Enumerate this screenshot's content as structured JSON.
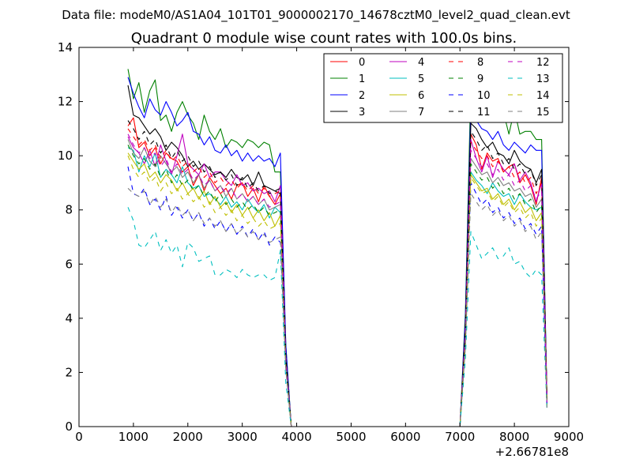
{
  "figure": {
    "suptitle": "Data file: modeM0/AS1A04_101T01_9000002170_14678cztM0_level2_quad_clean.evt"
  },
  "chart_data": {
    "type": "line",
    "title": "Quadrant 0 module wise count rates with 100.0s bins.",
    "xlabel": "",
    "ylabel": "",
    "x_offset_label": "+2.66781e8",
    "xlim": [
      0,
      9000
    ],
    "ylim": [
      0,
      14
    ],
    "xticks": [
      0,
      1000,
      2000,
      3000,
      4000,
      5000,
      6000,
      7000,
      8000,
      9000
    ],
    "yticks": [
      0,
      2,
      4,
      6,
      8,
      10,
      12,
      14
    ],
    "grid": false,
    "legend_position": "top-right",
    "legend_columns": 4,
    "x": [
      900,
      1000,
      1100,
      1200,
      1300,
      1400,
      1500,
      1600,
      1700,
      1800,
      1900,
      2000,
      2100,
      2200,
      2300,
      2400,
      2500,
      2600,
      2700,
      2800,
      2900,
      3000,
      3100,
      3200,
      3300,
      3400,
      3500,
      3600,
      3700,
      3800,
      3900,
      4000,
      4500,
      5000,
      5500,
      6000,
      6500,
      7000,
      7100,
      7200,
      7300,
      7400,
      7500,
      7600,
      7700,
      7800,
      7900,
      8000,
      8100,
      8200,
      8300,
      8400,
      8500,
      8600
    ],
    "series": [
      {
        "name": "0",
        "color": "#ff0000",
        "dashed": false,
        "values": [
          11.1,
          11.4,
          10.3,
          10.5,
          10.0,
          10.3,
          9.7,
          10.1,
          9.9,
          9.8,
          9.4,
          9.6,
          8.9,
          9.3,
          8.7,
          9.2,
          8.9,
          8.6,
          8.8,
          8.4,
          8.9,
          9.0,
          8.5,
          8.8,
          8.3,
          8.9,
          8.5,
          8.2,
          8.6,
          2.5,
          0.0,
          0.0,
          0.0,
          0.0,
          0.0,
          0.0,
          0.0,
          0.0,
          3.5,
          10.8,
          10.4,
          9.5,
          10.1,
          9.8,
          9.9,
          9.4,
          9.6,
          9.7,
          9.0,
          9.3,
          8.9,
          8.2,
          9.2,
          1.0
        ]
      },
      {
        "name": "1",
        "color": "#008000",
        "dashed": false,
        "values": [
          13.2,
          12.1,
          12.7,
          11.6,
          12.4,
          12.8,
          11.3,
          11.5,
          10.9,
          11.6,
          12.0,
          11.5,
          11.2,
          10.6,
          11.5,
          10.9,
          10.6,
          11.0,
          10.3,
          10.6,
          10.5,
          10.3,
          10.6,
          10.5,
          10.3,
          10.5,
          10.4,
          9.4,
          9.4,
          3.0,
          0.0,
          0.0,
          0.0,
          0.0,
          0.0,
          0.0,
          0.0,
          0.0,
          4.2,
          12.6,
          12.2,
          11.8,
          11.4,
          11.9,
          11.3,
          11.6,
          10.8,
          11.7,
          10.8,
          10.9,
          10.9,
          10.6,
          10.6,
          1.0
        ]
      },
      {
        "name": "2",
        "color": "#0000ff",
        "dashed": false,
        "values": [
          12.9,
          12.3,
          11.8,
          11.4,
          12.1,
          11.7,
          11.5,
          12.0,
          11.6,
          11.1,
          11.3,
          11.6,
          10.9,
          10.8,
          10.4,
          10.7,
          10.2,
          10.1,
          10.4,
          10.0,
          10.2,
          9.8,
          10.1,
          9.8,
          10.0,
          9.8,
          9.9,
          9.6,
          10.1,
          3.0,
          0.0,
          0.0,
          0.0,
          0.0,
          0.0,
          0.0,
          0.0,
          0.0,
          4.0,
          11.8,
          11.3,
          11.0,
          10.9,
          10.6,
          10.9,
          10.4,
          10.2,
          10.5,
          10.3,
          10.1,
          10.4,
          10.2,
          10.2,
          1.0
        ]
      },
      {
        "name": "3",
        "color": "#000000",
        "dashed": false,
        "values": [
          12.6,
          11.5,
          11.4,
          11.1,
          10.8,
          11.0,
          10.7,
          10.2,
          10.5,
          10.3,
          10.0,
          9.6,
          9.8,
          9.5,
          9.7,
          9.5,
          9.3,
          9.4,
          9.2,
          9.5,
          9.2,
          9.1,
          9.3,
          8.9,
          9.4,
          8.9,
          8.8,
          8.7,
          8.6,
          2.6,
          0.0,
          0.0,
          0.0,
          0.0,
          0.0,
          0.0,
          0.0,
          0.0,
          3.6,
          11.2,
          11.0,
          10.6,
          10.3,
          10.5,
          10.1,
          10.0,
          9.7,
          10.2,
          9.8,
          9.6,
          9.5,
          9.0,
          9.5,
          1.0
        ]
      },
      {
        "name": "4",
        "color": "#bf00bf",
        "dashed": false,
        "values": [
          10.7,
          10.3,
          10.1,
          9.7,
          10.2,
          9.6,
          10.4,
          9.8,
          9.3,
          10.0,
          10.8,
          9.7,
          9.5,
          9.3,
          9.7,
          9.2,
          9.4,
          9.4,
          9.1,
          8.9,
          9.3,
          8.9,
          9.0,
          8.7,
          8.8,
          8.6,
          8.7,
          8.3,
          8.9,
          2.4,
          0.0,
          0.0,
          0.0,
          0.0,
          0.0,
          0.0,
          0.0,
          0.0,
          3.3,
          10.6,
          9.9,
          9.4,
          10.0,
          9.2,
          9.8,
          9.5,
          9.3,
          9.7,
          9.1,
          9.4,
          9.0,
          8.3,
          9.0,
          1.0
        ]
      },
      {
        "name": "5",
        "color": "#00bfbf",
        "dashed": false,
        "values": [
          10.3,
          10.2,
          9.4,
          10.0,
          9.6,
          10.1,
          9.2,
          9.5,
          9.3,
          9.0,
          9.6,
          9.0,
          8.8,
          8.9,
          8.5,
          8.6,
          8.4,
          8.2,
          8.5,
          8.1,
          8.3,
          8.0,
          8.4,
          8.1,
          7.9,
          8.2,
          7.7,
          8.1,
          7.9,
          2.4,
          0.0,
          0.0,
          0.0,
          0.0,
          0.0,
          0.0,
          0.0,
          0.0,
          3.2,
          9.4,
          9.1,
          8.9,
          8.6,
          9.0,
          8.7,
          8.5,
          8.6,
          8.2,
          8.6,
          8.3,
          8.1,
          8.0,
          8.1,
          0.8
        ]
      },
      {
        "name": "6",
        "color": "#bfbf00",
        "dashed": false,
        "values": [
          10.1,
          9.8,
          9.5,
          9.7,
          9.2,
          9.4,
          9.0,
          9.3,
          9.1,
          8.7,
          9.0,
          8.6,
          8.8,
          8.4,
          8.7,
          8.2,
          8.5,
          8.1,
          8.3,
          7.9,
          8.2,
          7.8,
          8.1,
          7.7,
          8.0,
          7.6,
          7.9,
          7.4,
          7.8,
          2.3,
          0.0,
          0.0,
          0.0,
          0.0,
          0.0,
          0.0,
          0.0,
          0.0,
          3.1,
          9.3,
          9.0,
          8.7,
          8.8,
          8.4,
          8.6,
          8.2,
          8.4,
          8.0,
          8.3,
          7.9,
          8.1,
          7.6,
          7.9,
          0.8
        ]
      },
      {
        "name": "7",
        "color": "#808080",
        "dashed": false,
        "values": [
          10.6,
          10.1,
          9.9,
          10.3,
          9.8,
          9.6,
          10.0,
          9.7,
          9.4,
          9.6,
          9.2,
          9.4,
          9.0,
          9.3,
          8.8,
          9.1,
          8.7,
          8.9,
          8.5,
          8.8,
          8.4,
          8.6,
          8.3,
          8.5,
          8.2,
          8.4,
          8.0,
          8.1,
          8.2,
          2.4,
          0.0,
          0.0,
          0.0,
          0.0,
          0.0,
          0.0,
          0.0,
          0.0,
          3.3,
          9.9,
          9.6,
          9.3,
          9.4,
          9.0,
          9.2,
          8.9,
          9.0,
          8.7,
          8.8,
          8.5,
          8.6,
          8.1,
          8.4,
          0.9
        ]
      },
      {
        "name": "8",
        "color": "#ff0000",
        "dashed": true,
        "values": [
          11.0,
          10.7,
          10.4,
          10.6,
          10.2,
          10.4,
          9.9,
          10.2,
          9.8,
          10.0,
          9.6,
          9.8,
          9.4,
          9.6,
          9.2,
          9.4,
          9.0,
          9.2,
          8.9,
          9.1,
          8.8,
          9.0,
          8.7,
          8.9,
          8.6,
          8.8,
          8.5,
          8.6,
          8.7,
          2.5,
          0.0,
          0.0,
          0.0,
          0.0,
          0.0,
          0.0,
          0.0,
          0.0,
          3.5,
          10.5,
          10.2,
          9.9,
          10.0,
          9.6,
          9.8,
          9.4,
          9.6,
          9.2,
          9.4,
          9.0,
          9.2,
          8.6,
          9.0,
          1.0
        ]
      },
      {
        "name": "9",
        "color": "#008000",
        "dashed": true,
        "values": [
          10.4,
          10.0,
          9.7,
          9.9,
          9.5,
          9.7,
          9.2,
          9.5,
          9.0,
          9.3,
          8.9,
          9.1,
          8.7,
          8.9,
          8.5,
          8.7,
          8.3,
          8.6,
          8.2,
          8.4,
          8.1,
          8.3,
          8.0,
          8.2,
          7.9,
          8.1,
          7.8,
          7.9,
          8.0,
          2.3,
          0.0,
          0.0,
          0.0,
          0.0,
          0.0,
          0.0,
          0.0,
          0.0,
          3.2,
          9.7,
          9.4,
          9.1,
          9.2,
          8.8,
          9.0,
          8.6,
          8.8,
          8.4,
          8.6,
          8.2,
          8.4,
          7.9,
          8.2,
          0.8
        ]
      },
      {
        "name": "10",
        "color": "#0000ff",
        "dashed": true,
        "values": [
          9.6,
          8.6,
          8.5,
          8.8,
          8.2,
          8.4,
          8.0,
          8.5,
          7.8,
          8.1,
          7.7,
          8.0,
          7.6,
          7.9,
          7.4,
          7.7,
          7.3,
          7.6,
          7.2,
          7.5,
          7.1,
          7.4,
          7.0,
          7.3,
          6.9,
          7.2,
          6.7,
          7.0,
          6.8,
          2.1,
          0.0,
          0.0,
          0.0,
          0.0,
          0.0,
          0.0,
          0.0,
          0.0,
          3.0,
          9.0,
          8.6,
          8.2,
          8.4,
          7.9,
          8.1,
          7.7,
          7.9,
          7.5,
          7.7,
          7.3,
          7.5,
          7.1,
          7.4,
          0.7
        ]
      },
      {
        "name": "11",
        "color": "#000000",
        "dashed": true,
        "values": [
          11.3,
          11.0,
          10.6,
          10.9,
          10.4,
          10.6,
          10.1,
          10.4,
          9.9,
          10.2,
          9.8,
          10.0,
          9.6,
          9.8,
          9.4,
          9.6,
          9.2,
          9.4,
          9.1,
          9.3,
          8.9,
          9.2,
          8.8,
          9.0,
          8.7,
          8.9,
          8.6,
          8.7,
          8.8,
          2.6,
          0.0,
          0.0,
          0.0,
          0.0,
          0.0,
          0.0,
          0.0,
          0.0,
          3.6,
          10.9,
          10.6,
          10.2,
          10.4,
          9.9,
          10.1,
          9.7,
          9.9,
          9.5,
          9.7,
          9.3,
          9.5,
          8.9,
          9.3,
          1.0
        ]
      },
      {
        "name": "12",
        "color": "#bf00bf",
        "dashed": true,
        "values": [
          10.8,
          10.4,
          10.1,
          10.3,
          9.9,
          10.1,
          9.6,
          9.9,
          9.4,
          9.7,
          9.3,
          9.5,
          9.1,
          9.3,
          8.9,
          9.1,
          8.7,
          8.9,
          8.6,
          8.8,
          8.4,
          8.6,
          8.3,
          8.5,
          8.2,
          8.4,
          8.1,
          8.2,
          8.3,
          2.4,
          0.0,
          0.0,
          0.0,
          0.0,
          0.0,
          0.0,
          0.0,
          0.0,
          3.4,
          10.2,
          9.9,
          9.6,
          9.7,
          9.3,
          9.5,
          9.1,
          9.3,
          8.9,
          9.1,
          8.7,
          8.9,
          8.4,
          8.7,
          0.9
        ]
      },
      {
        "name": "13",
        "color": "#00bfbf",
        "dashed": true,
        "values": [
          8.1,
          7.6,
          6.7,
          6.6,
          6.9,
          7.2,
          6.5,
          6.9,
          6.4,
          6.7,
          5.9,
          6.8,
          6.6,
          6.1,
          6.2,
          6.3,
          5.6,
          5.6,
          5.8,
          5.7,
          5.5,
          5.8,
          5.6,
          5.5,
          5.6,
          5.6,
          5.4,
          5.5,
          6.5,
          1.6,
          0.0,
          0.0,
          0.0,
          0.0,
          0.0,
          0.0,
          0.0,
          0.0,
          2.5,
          7.2,
          6.7,
          6.2,
          6.4,
          6.6,
          6.2,
          6.3,
          6.6,
          6.0,
          6.1,
          5.7,
          5.5,
          5.8,
          5.6,
          0.6
        ]
      },
      {
        "name": "14",
        "color": "#bfbf00",
        "dashed": true,
        "values": [
          10.0,
          9.5,
          9.2,
          9.4,
          9.0,
          9.2,
          8.7,
          9.0,
          8.6,
          8.8,
          8.4,
          8.6,
          8.3,
          8.5,
          8.1,
          8.3,
          7.9,
          8.1,
          7.8,
          8.0,
          7.6,
          7.8,
          7.5,
          7.7,
          7.4,
          7.6,
          7.3,
          7.4,
          7.5,
          2.2,
          0.0,
          0.0,
          0.0,
          0.0,
          0.0,
          0.0,
          0.0,
          0.0,
          3.1,
          9.2,
          8.9,
          8.6,
          8.7,
          8.3,
          8.5,
          8.1,
          8.3,
          7.9,
          8.1,
          7.7,
          7.9,
          7.4,
          7.7,
          0.8
        ]
      },
      {
        "name": "15",
        "color": "#808080",
        "dashed": true,
        "values": [
          8.8,
          8.6,
          8.5,
          8.7,
          8.2,
          8.5,
          8.1,
          8.4,
          7.9,
          8.2,
          7.8,
          8.0,
          7.6,
          7.9,
          7.5,
          7.7,
          7.4,
          7.6,
          7.2,
          7.5,
          7.1,
          7.3,
          7.0,
          7.2,
          6.9,
          7.1,
          6.8,
          6.9,
          7.0,
          2.1,
          0.0,
          0.0,
          0.0,
          0.0,
          0.0,
          0.0,
          0.0,
          0.0,
          2.9,
          8.6,
          8.3,
          8.0,
          8.2,
          7.8,
          8.0,
          7.6,
          7.8,
          7.4,
          7.6,
          7.2,
          7.4,
          6.9,
          7.2,
          0.7
        ]
      }
    ]
  }
}
